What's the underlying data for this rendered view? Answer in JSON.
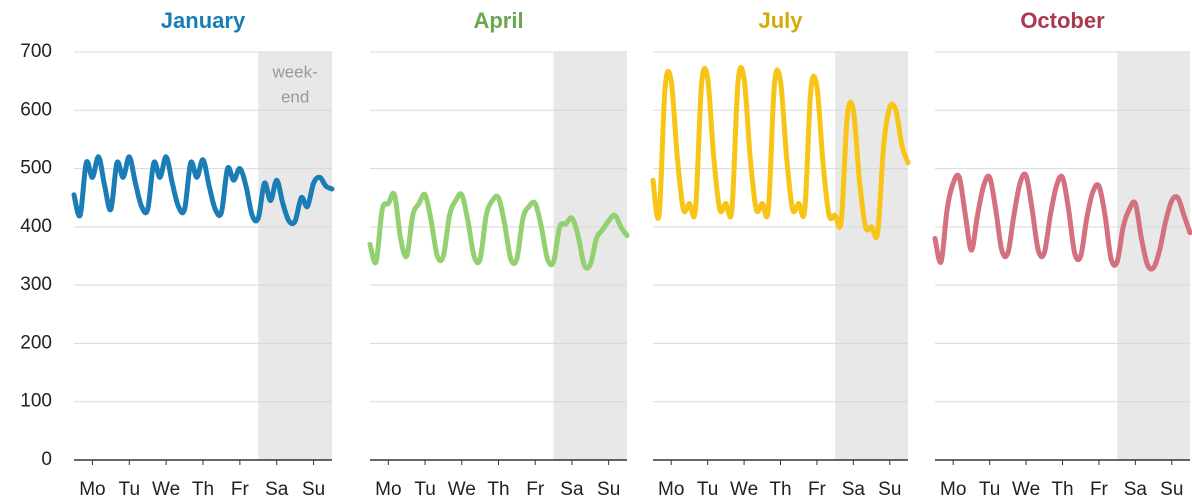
{
  "chart_data": [
    {
      "type": "line",
      "title": "January",
      "title_color": "#1a7db5",
      "color": "#1a7db5",
      "x": [
        0,
        4,
        8,
        12,
        16,
        20,
        24,
        28,
        32,
        36,
        40,
        44,
        48,
        52,
        56,
        60,
        64,
        68,
        72,
        76,
        80,
        84,
        88,
        92,
        96,
        100,
        104,
        108,
        112,
        116,
        120,
        124,
        128,
        132,
        136,
        140,
        144,
        148,
        152,
        156,
        160,
        164,
        168
      ],
      "values": [
        455,
        420,
        510,
        485,
        520,
        470,
        430,
        510,
        485,
        520,
        475,
        435,
        430,
        510,
        485,
        520,
        475,
        435,
        430,
        510,
        485,
        515,
        470,
        430,
        425,
        500,
        480,
        500,
        470,
        420,
        415,
        475,
        445,
        480,
        440,
        410,
        410,
        450,
        435,
        475,
        485,
        470,
        465
      ],
      "xlim": [
        0,
        168
      ],
      "xticks": [
        {
          "value": 12,
          "label": "Mo"
        },
        {
          "value": 36,
          "label": "Tu"
        },
        {
          "value": 60,
          "label": "We"
        },
        {
          "value": 84,
          "label": "Th"
        },
        {
          "value": 108,
          "label": "Fr"
        },
        {
          "value": 132,
          "label": "Sa"
        },
        {
          "value": 156,
          "label": "Su"
        }
      ],
      "ylim": [
        0,
        700
      ],
      "yticks": [
        0,
        100,
        200,
        300,
        400,
        500,
        600,
        700
      ],
      "show_ytick_labels": true,
      "grid": true,
      "highlight_x": [
        120,
        168
      ],
      "annotation": [
        "week-",
        "end"
      ]
    },
    {
      "type": "line",
      "title": "April",
      "title_color": "#6aa84f",
      "color": "#93d06f",
      "x": [
        0,
        4,
        8,
        12,
        16,
        20,
        24,
        28,
        32,
        36,
        40,
        44,
        48,
        52,
        56,
        60,
        64,
        68,
        72,
        76,
        80,
        84,
        88,
        92,
        96,
        100,
        104,
        108,
        112,
        116,
        120,
        124,
        128,
        132,
        136,
        140,
        144,
        148,
        152,
        156,
        160,
        164,
        168
      ],
      "values": [
        370,
        340,
        430,
        440,
        455,
        380,
        350,
        420,
        440,
        455,
        410,
        350,
        350,
        420,
        445,
        455,
        410,
        350,
        345,
        420,
        445,
        450,
        405,
        345,
        345,
        415,
        435,
        440,
        400,
        345,
        340,
        400,
        405,
        415,
        385,
        335,
        335,
        380,
        395,
        410,
        420,
        400,
        385
      ],
      "xlim": [
        0,
        168
      ],
      "xticks": [
        {
          "value": 12,
          "label": "Mo"
        },
        {
          "value": 36,
          "label": "Tu"
        },
        {
          "value": 60,
          "label": "We"
        },
        {
          "value": 84,
          "label": "Th"
        },
        {
          "value": 108,
          "label": "Fr"
        },
        {
          "value": 132,
          "label": "Sa"
        },
        {
          "value": 156,
          "label": "Su"
        }
      ],
      "ylim": [
        0,
        700
      ],
      "yticks": [
        0,
        100,
        200,
        300,
        400,
        500,
        600,
        700
      ],
      "show_ytick_labels": false,
      "grid": true,
      "highlight_x": [
        120,
        168
      ]
    },
    {
      "type": "line",
      "title": "July",
      "title_color": "#d4a90a",
      "color": "#f7c417",
      "x": [
        0,
        4,
        8,
        12,
        16,
        20,
        24,
        28,
        32,
        36,
        40,
        44,
        48,
        52,
        56,
        60,
        64,
        68,
        72,
        76,
        80,
        84,
        88,
        92,
        96,
        100,
        104,
        108,
        112,
        116,
        120,
        124,
        128,
        132,
        136,
        140,
        144,
        148,
        152,
        156,
        160,
        164,
        168
      ],
      "values": [
        480,
        420,
        640,
        650,
        520,
        430,
        440,
        430,
        645,
        655,
        520,
        430,
        440,
        430,
        648,
        655,
        520,
        430,
        440,
        430,
        645,
        650,
        520,
        430,
        440,
        430,
        635,
        640,
        510,
        420,
        420,
        410,
        590,
        600,
        480,
        400,
        400,
        390,
        540,
        605,
        600,
        540,
        510
      ],
      "xlim": [
        0,
        168
      ],
      "xticks": [
        {
          "value": 12,
          "label": "Mo"
        },
        {
          "value": 36,
          "label": "Tu"
        },
        {
          "value": 60,
          "label": "We"
        },
        {
          "value": 84,
          "label": "Th"
        },
        {
          "value": 108,
          "label": "Fr"
        },
        {
          "value": 132,
          "label": "Sa"
        },
        {
          "value": 156,
          "label": "Su"
        }
      ],
      "ylim": [
        0,
        700
      ],
      "yticks": [
        0,
        100,
        200,
        300,
        400,
        500,
        600,
        700
      ],
      "show_ytick_labels": false,
      "grid": true,
      "highlight_x": [
        120,
        168
      ]
    },
    {
      "type": "line",
      "title": "October",
      "title_color": "#a83a4e",
      "color": "#d4717f",
      "x": [
        0,
        4,
        8,
        12,
        16,
        20,
        24,
        28,
        32,
        36,
        40,
        44,
        48,
        52,
        56,
        60,
        64,
        68,
        72,
        76,
        80,
        84,
        88,
        92,
        96,
        100,
        104,
        108,
        112,
        116,
        120,
        124,
        128,
        132,
        136,
        140,
        144,
        148,
        152,
        156,
        160,
        164,
        168
      ],
      "values": [
        380,
        340,
        430,
        475,
        485,
        420,
        360,
        420,
        470,
        485,
        430,
        360,
        355,
        420,
        475,
        488,
        430,
        360,
        355,
        420,
        470,
        485,
        430,
        355,
        350,
        415,
        460,
        470,
        420,
        345,
        340,
        400,
        430,
        440,
        380,
        335,
        330,
        360,
        410,
        445,
        450,
        420,
        390
      ],
      "xlim": [
        0,
        168
      ],
      "xticks": [
        {
          "value": 12,
          "label": "Mo"
        },
        {
          "value": 36,
          "label": "Tu"
        },
        {
          "value": 60,
          "label": "We"
        },
        {
          "value": 84,
          "label": "Th"
        },
        {
          "value": 108,
          "label": "Fr"
        },
        {
          "value": 132,
          "label": "Sa"
        },
        {
          "value": 156,
          "label": "Su"
        }
      ],
      "ylim": [
        0,
        700
      ],
      "yticks": [
        0,
        100,
        200,
        300,
        400,
        500,
        600,
        700
      ],
      "show_ytick_labels": false,
      "grid": true,
      "highlight_x": [
        120,
        168
      ]
    }
  ]
}
